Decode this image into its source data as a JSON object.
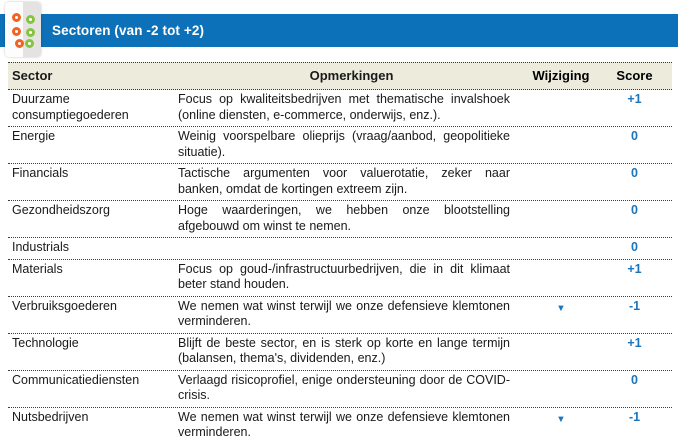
{
  "banner": {
    "title": "Sectoren (van -2 tot +2)"
  },
  "logo": {
    "icon": "dots-logo",
    "dot_colors": {
      "left_column": "#f26322",
      "right_column": "#85c441"
    }
  },
  "colors": {
    "banner_blue": "#0c71b8",
    "score_blue": "#1b75bd",
    "header_row_bg": "#edebdc",
    "divider": "#3a3a3a"
  },
  "table": {
    "columns": {
      "sector": "Sector",
      "remarks": "Opmerkingen",
      "change": "Wijziging",
      "score": "Score"
    },
    "change_down_glyph": "▼",
    "rows": [
      {
        "sector": "Duurzame consumptiegoederen",
        "remark": "Focus op kwaliteitsbedrijven met thematische invalshoek (online diensten, e-commerce, onderwijs, enz.).",
        "change": "",
        "score": "+1"
      },
      {
        "sector": "Energie",
        "remark": "Weinig voorspelbare olieprijs (vraag/aanbod, geopolitieke situatie).",
        "change": "",
        "score": "0"
      },
      {
        "sector": "Financials",
        "remark": "Tactische argumenten voor valuerotatie, zeker naar banken, omdat de kortingen extreem zijn.",
        "change": "",
        "score": "0"
      },
      {
        "sector": "Gezondheidszorg",
        "remark": "Hoge waarderingen, we hebben onze blootstelling afgebouwd om winst te nemen.",
        "change": "",
        "score": "0"
      },
      {
        "sector": "Industrials",
        "remark": "",
        "change": "",
        "score": "0"
      },
      {
        "sector": "Materials",
        "remark": "Focus op goud-/infrastructuurbedrijven, die in dit klimaat beter stand houden.",
        "change": "",
        "score": "+1"
      },
      {
        "sector": "Verbruiksgoederen",
        "remark": "We nemen wat winst terwijl we onze defensieve klemtonen verminderen.",
        "change": "▼",
        "score": "-1"
      },
      {
        "sector": "Technologie",
        "remark": "Blijft de beste sector, en is sterk op korte en lange termijn (balansen, thema's, dividenden, enz.)",
        "change": "",
        "score": "+1"
      },
      {
        "sector": "Communicatiediensten",
        "remark": "Verlaagd risicoprofiel, enige ondersteuning door de COVID-crisis.",
        "change": "",
        "score": "0"
      },
      {
        "sector": "Nutsbedrijven",
        "remark": "We nemen wat winst terwijl we onze defensieve klemtonen verminderen.",
        "change": "▼",
        "score": "-1"
      }
    ]
  }
}
